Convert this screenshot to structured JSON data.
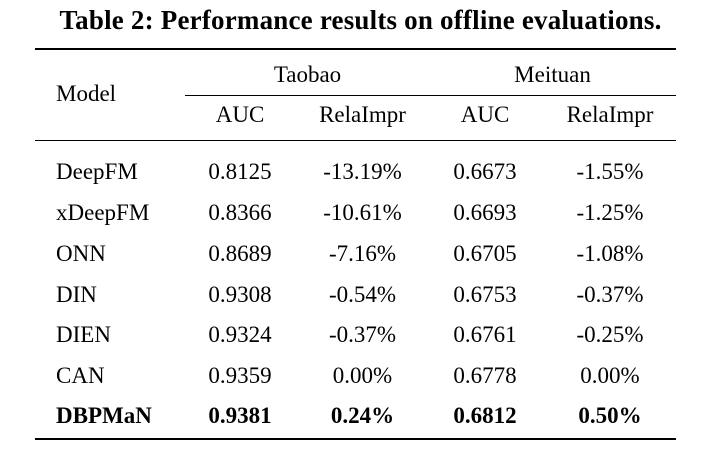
{
  "caption": "Table 2: Performance results on offline evaluations.",
  "header": {
    "model": "Model",
    "groups": [
      "Taobao",
      "Meituan"
    ],
    "subcolumns": [
      "AUC",
      "RelaImpr",
      "AUC",
      "RelaImpr"
    ]
  },
  "rows": [
    {
      "model": "DeepFM",
      "cells": [
        "0.8125",
        "-13.19%",
        "0.6673",
        "-1.55%"
      ],
      "bold": false
    },
    {
      "model": "xDeepFM",
      "cells": [
        "0.8366",
        "-10.61%",
        "0.6693",
        "-1.25%"
      ],
      "bold": false
    },
    {
      "model": "ONN",
      "cells": [
        "0.8689",
        "-7.16%",
        "0.6705",
        "-1.08%"
      ],
      "bold": false
    },
    {
      "model": "DIN",
      "cells": [
        "0.9308",
        "-0.54%",
        "0.6753",
        "-0.37%"
      ],
      "bold": false
    },
    {
      "model": "DIEN",
      "cells": [
        "0.9324",
        "-0.37%",
        "0.6761",
        "-0.25%"
      ],
      "bold": false
    },
    {
      "model": "CAN",
      "cells": [
        "0.9359",
        "0.00%",
        "0.6778",
        "0.00%"
      ],
      "bold": false
    },
    {
      "model": "DBPMaN",
      "cells": [
        "0.9381",
        "0.24%",
        "0.6812",
        "0.50%"
      ],
      "bold": true
    }
  ]
}
